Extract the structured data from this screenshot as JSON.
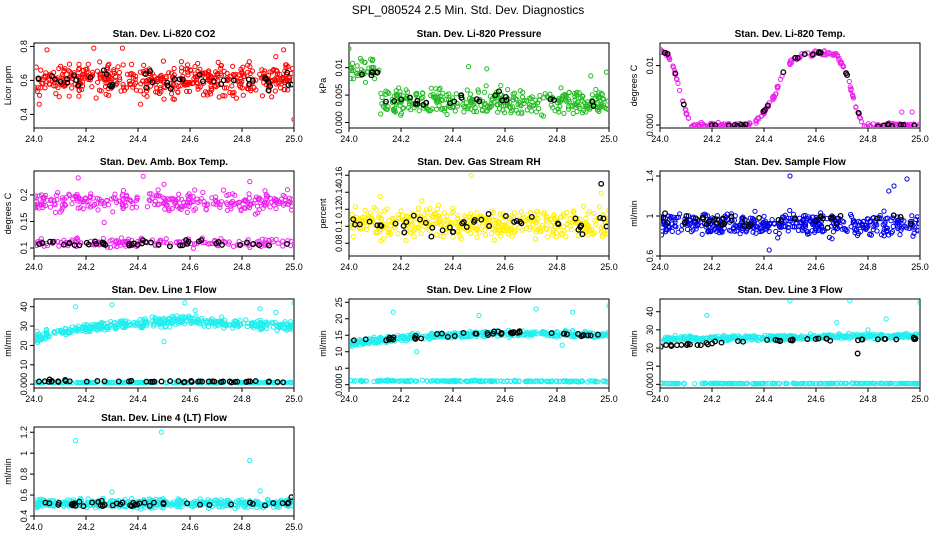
{
  "figure_title": "SPL_080524  2.5 Min. Std. Dev. Diagnostics",
  "chart_data": [
    {
      "type": "scatter",
      "title": "Stan. Dev. Li-820 CO2",
      "ylabel": "Licor ppm",
      "xlim": [
        24.0,
        25.0
      ],
      "ylim": [
        0.32,
        0.82
      ],
      "xticks": [
        "24.0",
        "24.2",
        "24.4",
        "24.6",
        "24.8",
        "25.0"
      ],
      "yticks": [
        0.4,
        0.6,
        0.8
      ],
      "series": [
        {
          "name": "all",
          "color": "#ff0000",
          "bands": [
            {
              "y_min": 0.47,
              "y_max": 0.74,
              "n": 460
            }
          ],
          "outliers": [
            [
              24.02,
              0.46
            ],
            [
              24.05,
              0.78
            ],
            [
              24.23,
              0.79
            ],
            [
              24.34,
              0.79
            ],
            [
              24.41,
              0.46
            ],
            [
              24.5,
              0.49
            ],
            [
              24.93,
              0.74
            ],
            [
              24.96,
              0.78
            ],
            [
              25.0,
              0.37
            ]
          ]
        },
        {
          "name": "selected",
          "color": "#000000",
          "bands": [
            {
              "y_min": 0.52,
              "y_max": 0.68,
              "n": 42
            }
          ],
          "outliers": []
        }
      ]
    },
    {
      "type": "scatter",
      "title": "Stan. Dev. Li-820 Pressure",
      "ylabel": "kPa",
      "xlim": [
        24.0,
        25.0
      ],
      "ylim": [
        -0.001,
        0.0145
      ],
      "xticks": [
        "24.0",
        "24.2",
        "24.4",
        "24.6",
        "24.8",
        "25.0"
      ],
      "yticks": [
        0.0,
        0.005,
        0.01
      ],
      "series": [
        {
          "name": "all",
          "color": "#22bb22",
          "bands": [
            {
              "x_from": 24.0,
              "x_to": 24.12,
              "y_min": 0.0065,
              "y_max": 0.0125,
              "n": 40
            },
            {
              "x_from": 24.12,
              "x_to": 25.0,
              "y_min": 0.0,
              "y_max": 0.0072,
              "n": 360
            }
          ],
          "outliers": [
            [
              24.0,
              0.0135
            ],
            [
              24.46,
              0.0102
            ],
            [
              24.53,
              0.0098
            ],
            [
              24.93,
              0.0085
            ],
            [
              24.99,
              0.0092
            ]
          ]
        },
        {
          "name": "selected",
          "color": "#000000",
          "bands": [
            {
              "x_from": 24.02,
              "x_to": 24.12,
              "y_min": 0.007,
              "y_max": 0.0105,
              "n": 6
            },
            {
              "x_from": 24.12,
              "x_to": 25.0,
              "y_min": 0.002,
              "y_max": 0.006,
              "n": 24
            }
          ],
          "outliers": []
        }
      ]
    },
    {
      "type": "scatter",
      "title": "Stan. Dev. Li-820 Temp.",
      "ylabel": "degrees C",
      "xlim": [
        24.0,
        25.0
      ],
      "ylim": [
        -0.0005,
        0.0138
      ],
      "xticks": [
        "24.0",
        "24.2",
        "24.4",
        "24.6",
        "24.8",
        "25.0"
      ],
      "yticks": [
        0.0,
        0.01
      ],
      "series": [
        {
          "name": "all",
          "color": "#ee22ee",
          "curve": [
            [
              24.0,
              0.0125
            ],
            [
              24.03,
              0.012
            ],
            [
              24.06,
              0.0085
            ],
            [
              24.09,
              0.0035
            ],
            [
              24.12,
              0.0
            ],
            [
              24.36,
              0.0
            ],
            [
              24.4,
              0.0022
            ],
            [
              24.44,
              0.0048
            ],
            [
              24.47,
              0.0085
            ],
            [
              24.5,
              0.0105
            ],
            [
              24.55,
              0.0118
            ],
            [
              24.62,
              0.0121
            ],
            [
              24.68,
              0.0118
            ],
            [
              24.72,
              0.0085
            ],
            [
              24.75,
              0.0035
            ],
            [
              24.78,
              0.0
            ],
            [
              25.0,
              0.0
            ]
          ],
          "spread": 0.0006,
          "n": 260,
          "outliers": [
            [
              24.93,
              0.0022
            ],
            [
              24.97,
              0.0022
            ]
          ]
        },
        {
          "name": "selected",
          "color": "#000000",
          "curve": [
            [
              24.0,
              0.0125
            ],
            [
              24.03,
              0.012
            ],
            [
              24.06,
              0.0085
            ],
            [
              24.09,
              0.0035
            ],
            [
              24.12,
              0.0
            ],
            [
              24.36,
              0.0
            ],
            [
              24.4,
              0.0022
            ],
            [
              24.44,
              0.0048
            ],
            [
              24.47,
              0.0085
            ],
            [
              24.5,
              0.0105
            ],
            [
              24.55,
              0.0118
            ],
            [
              24.62,
              0.0121
            ],
            [
              24.68,
              0.0118
            ],
            [
              24.72,
              0.0085
            ],
            [
              24.75,
              0.0035
            ],
            [
              24.78,
              0.0
            ],
            [
              25.0,
              0.0
            ]
          ],
          "spread": 0.0004,
          "n": 34,
          "outliers": []
        }
      ]
    },
    {
      "type": "scatter",
      "title": "Stan. Dev. Amb. Box Temp.",
      "ylabel": "degrees C",
      "xlim": [
        24.0,
        25.0
      ],
      "ylim": [
        0.085,
        0.245
      ],
      "xticks": [
        "24.0",
        "24.2",
        "24.4",
        "24.6",
        "24.8",
        "25.0"
      ],
      "yticks": [
        0.1,
        0.15,
        0.2
      ],
      "series": [
        {
          "name": "all",
          "color": "#ee22ee",
          "bands": [
            {
              "y_min": 0.16,
              "y_max": 0.215,
              "n": 300
            },
            {
              "y_min": 0.098,
              "y_max": 0.122,
              "n": 160
            }
          ],
          "outliers": [
            [
              24.17,
              0.232
            ],
            [
              24.42,
              0.235
            ],
            [
              24.27,
              0.148
            ],
            [
              24.5,
              0.22
            ],
            [
              24.83,
              0.225
            ]
          ]
        },
        {
          "name": "selected",
          "color": "#000000",
          "bands": [
            {
              "y_min": 0.1,
              "y_max": 0.12,
              "n": 44
            }
          ],
          "outliers": []
        }
      ]
    },
    {
      "type": "scatter",
      "title": "Stan. Dev. Gas Stream RH",
      "ylabel": "percent",
      "xlim": [
        24.0,
        25.0
      ],
      "ylim": [
        0.065,
        0.165
      ],
      "xticks": [
        "24.0",
        "24.2",
        "24.4",
        "24.6",
        "24.8",
        "25.0"
      ],
      "yticks": [
        0.08,
        0.1,
        0.12,
        0.14,
        0.16
      ],
      "series": [
        {
          "name": "all",
          "color": "#ffee00",
          "bands": [
            {
              "y_min": 0.078,
              "y_max": 0.128,
              "n": 420
            }
          ],
          "outliers": [
            [
              24.12,
              0.135
            ],
            [
              24.28,
              0.13
            ],
            [
              24.47,
              0.16
            ],
            [
              24.97,
              0.139
            ]
          ]
        },
        {
          "name": "selected",
          "color": "#000000",
          "bands": [
            {
              "y_min": 0.082,
              "y_max": 0.122,
              "n": 44
            }
          ],
          "outliers": [
            [
              24.97,
              0.15
            ]
          ]
        }
      ]
    },
    {
      "type": "scatter",
      "title": "Stan. Dev. Sample Flow",
      "ylabel": "ml/min",
      "xlim": [
        24.0,
        25.0
      ],
      "ylim": [
        0.6,
        1.45
      ],
      "xticks": [
        "24.0",
        "24.2",
        "24.4",
        "24.6",
        "24.8",
        "25.0"
      ],
      "yticks": [
        0.6,
        1.0,
        1.4
      ],
      "series": [
        {
          "name": "all",
          "color": "#0000ee",
          "bands": [
            {
              "y_min": 0.75,
              "y_max": 1.08,
              "n": 440
            }
          ],
          "outliers": [
            [
              24.5,
              1.4
            ],
            [
              24.95,
              1.37
            ],
            [
              24.42,
              0.66
            ],
            [
              24.88,
              1.25
            ],
            [
              24.9,
              1.3
            ]
          ]
        },
        {
          "name": "selected",
          "color": "#000000",
          "bands": [
            {
              "y_min": 0.85,
              "y_max": 1.08,
              "n": 40
            }
          ],
          "outliers": []
        }
      ]
    },
    {
      "type": "scatter",
      "title": "Stan. Dev. Line 1 Flow",
      "ylabel": "ml/min",
      "xlim": [
        24.0,
        25.0
      ],
      "ylim": [
        -2,
        44
      ],
      "xticks": [
        "24.0",
        "24.2",
        "24.4",
        "24.6",
        "24.8",
        "25.0"
      ],
      "yticks": [
        0,
        10,
        20,
        30,
        40
      ],
      "series": [
        {
          "name": "all",
          "color": "#22eeee",
          "curve": [
            [
              24.0,
              24
            ],
            [
              24.2,
              29
            ],
            [
              24.45,
              32
            ],
            [
              24.6,
              33
            ],
            [
              24.8,
              31
            ],
            [
              25.0,
              30
            ]
          ],
          "spread": 3.5,
          "n": 420,
          "outliers": [
            [
              24.16,
              40
            ],
            [
              24.3,
              41
            ],
            [
              24.58,
              42
            ],
            [
              24.62,
              38
            ],
            [
              24.87,
              39
            ],
            [
              24.93,
              37
            ],
            [
              25.0,
              42
            ],
            [
              24.5,
              22
            ]
          ]
        },
        {
          "name": "line-low",
          "color": "#22eeee",
          "curve": [
            [
              24.0,
              0.8
            ],
            [
              25.0,
              0.8
            ]
          ],
          "spread": 0.3,
          "n": 200,
          "outliers": []
        },
        {
          "name": "selected",
          "color": "#000000",
          "curve": [
            [
              24.0,
              1.5
            ],
            [
              25.0,
              1.2
            ]
          ],
          "spread": 0.6,
          "n": 50,
          "outliers": [
            [
              24.06,
              2.4
            ],
            [
              24.12,
              2.2
            ]
          ]
        }
      ]
    },
    {
      "type": "scatter",
      "title": "Stan. Dev. Line 2 Flow",
      "ylabel": "ml/min",
      "xlim": [
        24.0,
        25.0
      ],
      "ylim": [
        -1,
        26
      ],
      "xticks": [
        "24.0",
        "24.2",
        "24.4",
        "24.6",
        "24.8",
        "25.0"
      ],
      "yticks": [
        0,
        5,
        10,
        15,
        20,
        25
      ],
      "series": [
        {
          "name": "all",
          "color": "#22eeee",
          "curve": [
            [
              24.0,
              12.5
            ],
            [
              24.25,
              14.5
            ],
            [
              24.5,
              15.5
            ],
            [
              24.75,
              15.5
            ],
            [
              25.0,
              15
            ]
          ],
          "spread": 1.4,
          "n": 400,
          "outliers": [
            [
              24.17,
              22
            ],
            [
              24.26,
              10
            ],
            [
              24.5,
              21
            ],
            [
              24.72,
              23
            ],
            [
              24.82,
              12
            ],
            [
              24.86,
              22
            ],
            [
              25.0,
              24
            ]
          ]
        },
        {
          "name": "line-low",
          "color": "#22eeee",
          "curve": [
            [
              24.0,
              1.2
            ],
            [
              25.0,
              1.0
            ]
          ],
          "spread": 0.3,
          "n": 200,
          "outliers": []
        },
        {
          "name": "selected",
          "color": "#000000",
          "curve": [
            [
              24.0,
              13.5
            ],
            [
              24.3,
              14.5
            ],
            [
              24.6,
              16
            ],
            [
              25.0,
              15
            ]
          ],
          "spread": 1.0,
          "n": 44,
          "outliers": []
        }
      ]
    },
    {
      "type": "scatter",
      "title": "Stan. Dev. Line 3 Flow",
      "ylabel": "ml/min",
      "xlim": [
        24.0,
        25.0
      ],
      "ylim": [
        -2,
        47
      ],
      "xticks": [
        "24.0",
        "24.2",
        "24.4",
        "24.6",
        "24.8",
        "25.0"
      ],
      "yticks": [
        0,
        10,
        20,
        30,
        40
      ],
      "series": [
        {
          "name": "all",
          "color": "#22eeee",
          "curve": [
            [
              24.0,
              25
            ],
            [
              25.0,
              27
            ]
          ],
          "spread": 2.0,
          "n": 400,
          "outliers": [
            [
              24.18,
              38
            ],
            [
              24.5,
              46
            ],
            [
              24.68,
              34
            ],
            [
              24.73,
              46
            ],
            [
              24.8,
              30
            ],
            [
              24.87,
              36
            ],
            [
              25.0,
              45
            ]
          ]
        },
        {
          "name": "line-low",
          "color": "#22eeee",
          "curve": [
            [
              24.0,
              0.5
            ],
            [
              25.0,
              0.5
            ]
          ],
          "spread": 0.3,
          "n": 200,
          "outliers": []
        },
        {
          "name": "selected",
          "color": "#000000",
          "curve": [
            [
              24.0,
              21
            ],
            [
              24.3,
              23.5
            ],
            [
              24.6,
              24.5
            ],
            [
              25.0,
              25
            ]
          ],
          "spread": 1.2,
          "n": 44,
          "outliers": [
            [
              24.76,
              17
            ]
          ]
        }
      ]
    },
    {
      "type": "scatter",
      "title": "Stan. Dev. Line 4 (LT) Flow",
      "ylabel": "ml/min",
      "xlim": [
        24.0,
        25.0
      ],
      "ylim": [
        0.4,
        1.25
      ],
      "xticks": [
        "24.0",
        "24.2",
        "24.4",
        "24.6",
        "24.8",
        "25.0"
      ],
      "yticks": [
        0.4,
        0.6,
        0.8,
        1.0,
        1.2
      ],
      "series": [
        {
          "name": "all",
          "color": "#22eeee",
          "bands": [
            {
              "y_min": 0.46,
              "y_max": 0.58,
              "n": 440
            }
          ],
          "outliers": [
            [
              24.16,
              1.12
            ],
            [
              24.49,
              1.2
            ],
            [
              24.83,
              0.93
            ],
            [
              24.87,
              0.64
            ],
            [
              24.3,
              0.63
            ]
          ]
        },
        {
          "name": "selected",
          "color": "#000000",
          "bands": [
            {
              "y_min": 0.47,
              "y_max": 0.56,
              "n": 44
            }
          ],
          "outliers": [
            [
              24.99,
              0.58
            ]
          ]
        }
      ]
    }
  ]
}
